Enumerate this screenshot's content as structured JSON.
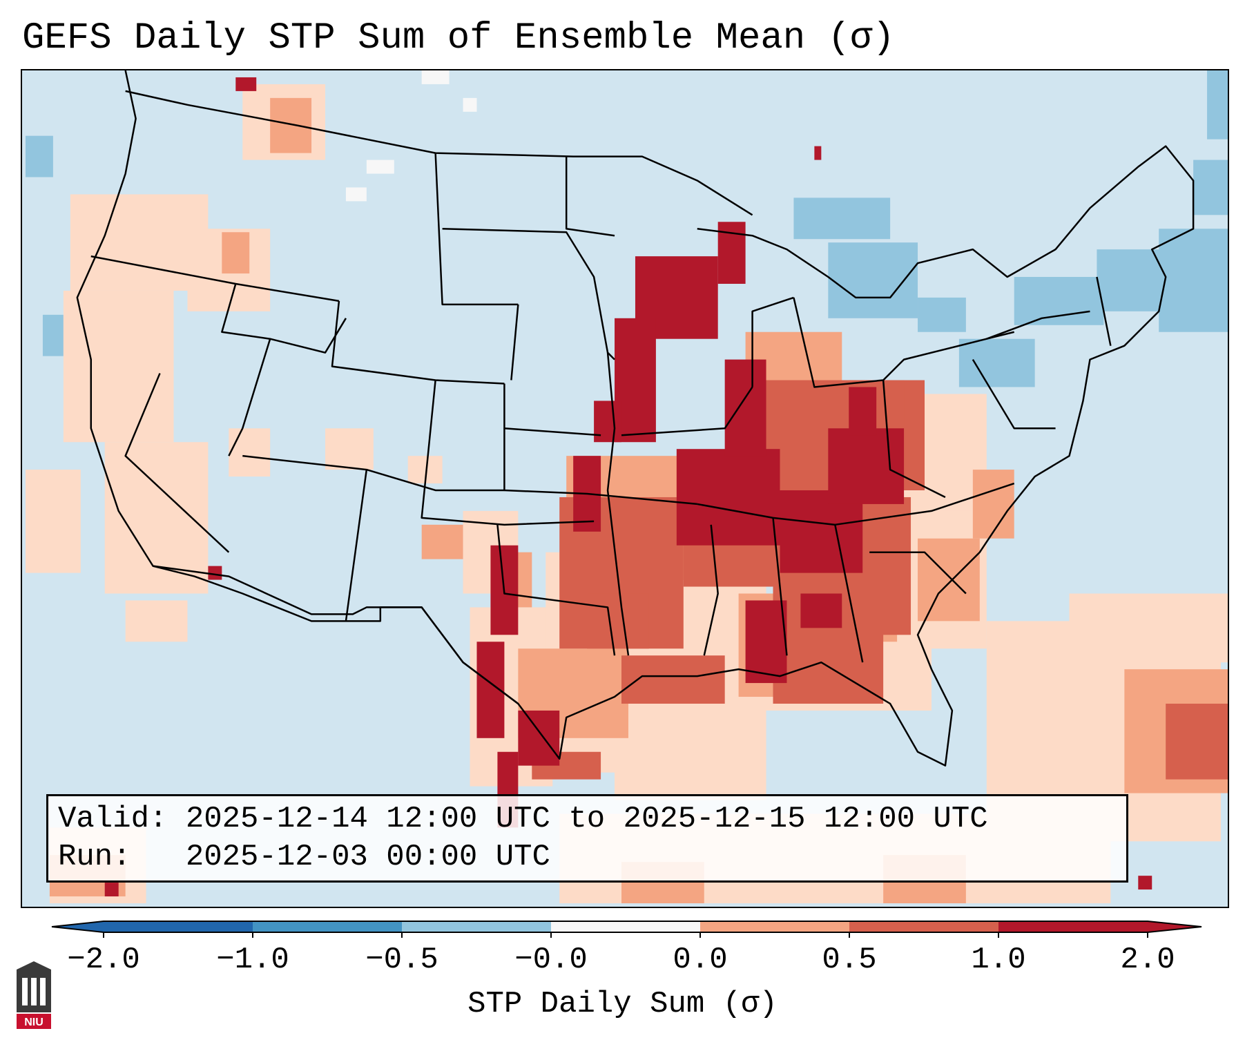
{
  "title": "GEFS Daily STP Sum of Ensemble Mean (σ)",
  "info": {
    "valid_label": "Valid:",
    "valid_text": "2025-12-14 12:00 UTC to 2025-12-15 12:00 UTC",
    "run_label": "Run:",
    "run_text": "2025-12-03 00:00 UTC"
  },
  "colorbar": {
    "label": "STP Daily Sum (σ)",
    "ticks": [
      "−2.0",
      "−1.0",
      "−0.5",
      "−0.0",
      "0.0",
      "0.5",
      "1.0",
      "2.0"
    ],
    "colors": [
      "#2166ac",
      "#4393c3",
      "#92c5de",
      "#d1e5f0",
      "#fddbc7",
      "#f4a582",
      "#d6604d",
      "#b2182b"
    ],
    "extend": "both"
  },
  "colors": {
    "background_ocean": "#d1e5f0",
    "strong_positive": "#b2182b",
    "positive": "#d6604d",
    "weak_positive": "#f4a582",
    "slight_positive": "#fddbc7",
    "slight_negative": "#92c5de",
    "border": "#000000"
  },
  "logo": {
    "text": "NIU",
    "icon": "niu-building-icon"
  }
}
